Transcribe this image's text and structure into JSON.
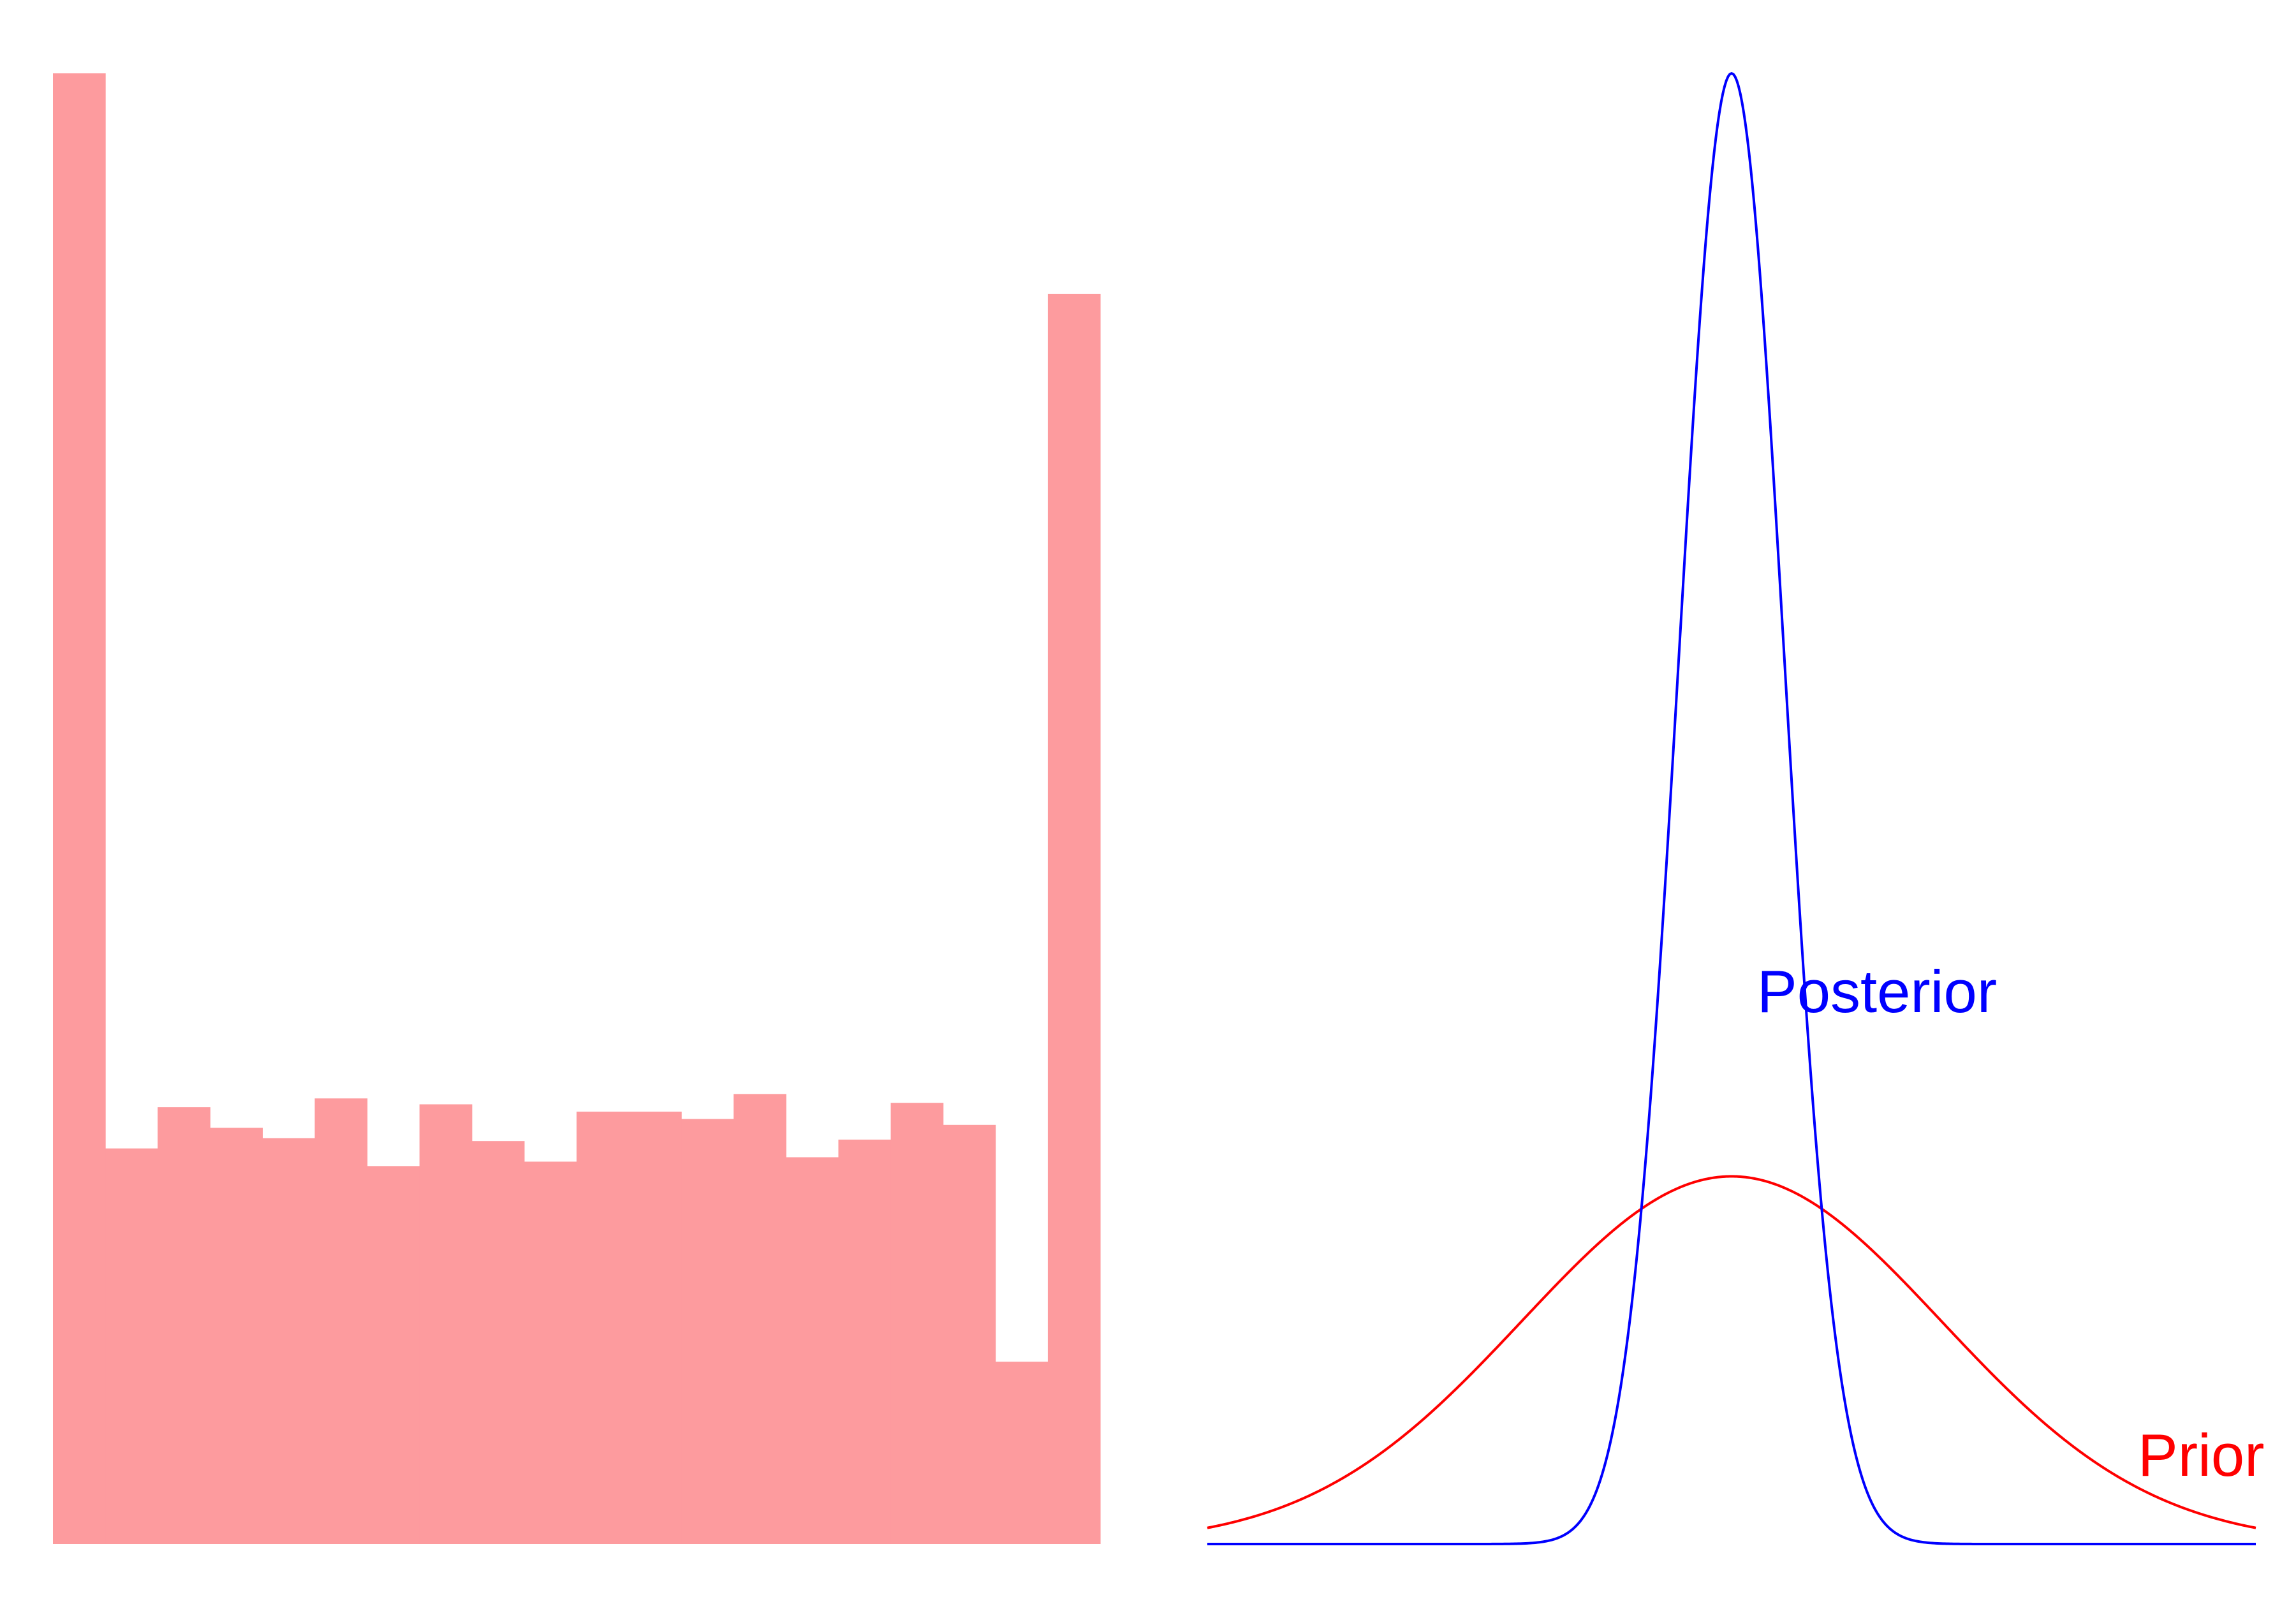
{
  "colors": {
    "background": "#ffffff",
    "histogram_fill": "#fd9b9e",
    "prior": "#ff0000",
    "posterior": "#0000ff"
  },
  "chart_data": [
    {
      "type": "bar",
      "title": "",
      "xlabel": "",
      "ylabel": "",
      "axes_visible": false,
      "grid": false,
      "bins": 20,
      "ylim": [
        0,
        1000
      ],
      "values": [
        1000,
        269,
        297,
        283,
        276,
        303,
        257,
        299,
        274,
        260,
        294,
        294,
        289,
        306,
        263,
        275,
        300,
        285,
        124,
        850
      ]
    },
    {
      "type": "line",
      "title": "",
      "xlabel": "",
      "ylabel": "",
      "axes_visible": false,
      "grid": false,
      "xlim": [
        -5,
        5
      ],
      "ylim": [
        0,
        1
      ],
      "series": [
        {
          "name": "Prior",
          "color": "#ff0000",
          "distribution": "normal",
          "mean": 0,
          "sd": 2,
          "peak": 0.25
        },
        {
          "name": "Posterior",
          "color": "#0000ff",
          "distribution": "normal",
          "mean": 0,
          "sd": 0.5,
          "peak": 1.0
        }
      ]
    }
  ]
}
